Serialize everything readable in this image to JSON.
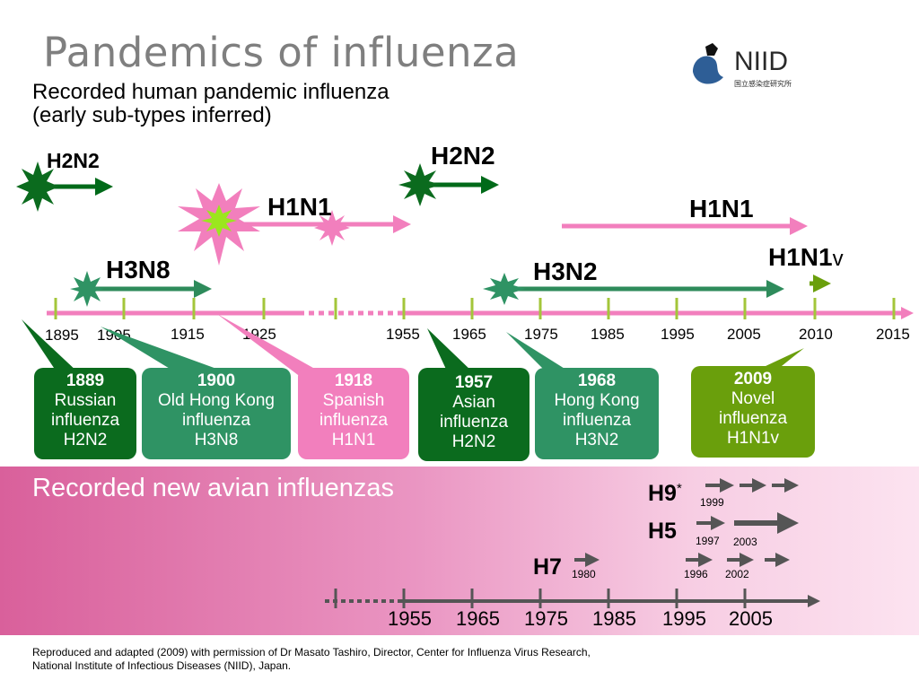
{
  "header": {
    "title": "Pandemics of influenza",
    "subtitle_line1": "Recorded human pandemic influenza",
    "subtitle_line2": "(early sub-types inferred)",
    "logo_text": "NIID",
    "logo_subtext": "国立感染症研究所"
  },
  "chart_data": [
    {
      "type": "timeline",
      "axis": {
        "ticks": [
          "1895",
          "1905",
          "1915",
          "1925",
          "1955",
          "1965",
          "1975",
          "1985",
          "1995",
          "2005",
          "2010",
          "2015"
        ]
      },
      "subtype_arrows": [
        {
          "label": "H2N2",
          "from": 1889,
          "to": 1900,
          "color": "#006a19"
        },
        {
          "label": "H3N8",
          "from": 1900,
          "to": 1918,
          "color": "#2e8b5b"
        },
        {
          "label": "H1N1",
          "from": 1918,
          "to": 1957,
          "color": "#f27fbd"
        },
        {
          "label": "H2N2",
          "from": 1957,
          "to": 1968,
          "color": "#006a19"
        },
        {
          "label": "H1N1",
          "from": 1977,
          "to": 2009,
          "color": "#f27fbd"
        },
        {
          "label": "H3N2",
          "from": 1968,
          "to": 2009,
          "color": "#2e8b5b"
        },
        {
          "label": "H1N1",
          "label_suffix": "v",
          "from": 2009,
          "to": 2011,
          "color": "#6a9f0c"
        }
      ],
      "pandemics": [
        {
          "year": "1889",
          "name": [
            "Russian",
            "influenza"
          ],
          "subtype": "H2N2",
          "color": "#0b6b1e"
        },
        {
          "year": "1900",
          "name": [
            "Old Hong Kong",
            "influenza"
          ],
          "subtype": "H3N8",
          "color": "#2f9364"
        },
        {
          "year": "1918",
          "name": [
            "Spanish",
            "influenza"
          ],
          "subtype": "H1N1",
          "color": "#f27fbd"
        },
        {
          "year": "1957",
          "name": [
            "Asian",
            "influenza"
          ],
          "subtype": "H2N2",
          "color": "#0b6b1e"
        },
        {
          "year": "1968",
          "name": [
            "Hong Kong",
            "influenza"
          ],
          "subtype": "H3N2",
          "color": "#2f9364"
        },
        {
          "year": "2009",
          "name": [
            "Novel",
            "influenza"
          ],
          "subtype": "H1N1v",
          "color": "#6a9f0c"
        }
      ]
    },
    {
      "type": "timeline",
      "title": "Recorded new avian influenzas",
      "axis": {
        "ticks": [
          "1955",
          "1965",
          "1975",
          "1985",
          "1995",
          "2005"
        ]
      },
      "subtypes": [
        {
          "label": "H9",
          "footnote_mark": "*",
          "years": [
            "1999"
          ]
        },
        {
          "label": "H5",
          "years": [
            "1997",
            "2003"
          ]
        },
        {
          "label": "H7",
          "years": [
            "1980",
            "1996",
            "2002"
          ]
        }
      ]
    }
  ],
  "footnote": {
    "line1": "Reproduced and adapted (2009) with permission of Dr Masato Tashiro, Director, Center for Influenza Virus Research,",
    "line2": "National Institute of Infectious Diseases (NIID), Japan."
  }
}
